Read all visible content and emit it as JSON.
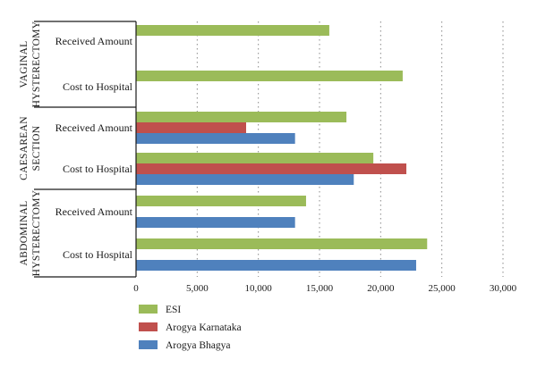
{
  "chart_data": {
    "type": "bar",
    "orientation": "horizontal",
    "xlim": [
      0,
      30000
    ],
    "x_ticks": [
      "0",
      "5,000",
      "10,000",
      "15,000",
      "20,000",
      "25,000",
      "30,000"
    ],
    "grid": "vertical-dotted",
    "legend_position": "bottom-left",
    "groups": [
      {
        "label_lines": [
          "VAGINAL",
          "HYSTERECTOMY"
        ],
        "categories": [
          "Received Amount",
          "Cost to Hospital"
        ]
      },
      {
        "label_lines": [
          "CAESAREAN",
          "SECTION"
        ],
        "categories": [
          "Received Amount",
          "Cost to Hospital"
        ]
      },
      {
        "label_lines": [
          "ABDOMINAL",
          "HYSTERECTOMY"
        ],
        "categories": [
          "Received Amount",
          "Cost to Hospital"
        ]
      }
    ],
    "series": [
      {
        "name": "ESI",
        "color": "#9bbb59",
        "values": [
          15800,
          21800,
          17200,
          19400,
          13900,
          23800
        ]
      },
      {
        "name": "Arogya Karnataka",
        "color": "#c0504d",
        "values": [
          null,
          null,
          9000,
          22100,
          null,
          null
        ]
      },
      {
        "name": "Arogya Bhagya",
        "color": "#4f81bd",
        "values": [
          null,
          null,
          13000,
          17800,
          13000,
          22900
        ]
      }
    ]
  }
}
